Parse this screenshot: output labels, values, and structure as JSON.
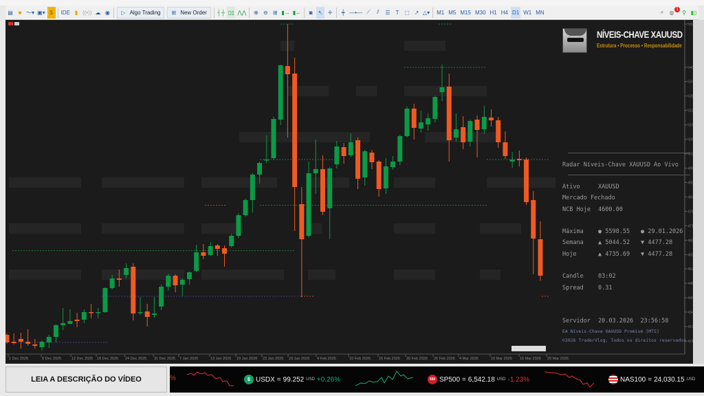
{
  "toolbar": {
    "algo_trading": "Algo Trading",
    "new_order": "New Order",
    "ide": "IDE",
    "timeframes": [
      "M1",
      "M5",
      "M15",
      "M30",
      "H1",
      "H4",
      "D1",
      "W1",
      "MN"
    ],
    "active_timeframe": "D1",
    "notification_count": "1"
  },
  "chart": {
    "symbol": "XAUUSD",
    "timeframe": "D1",
    "bull_color": "#0b9a47",
    "bear_color": "#f05a22",
    "price_axis": [
      "5597",
      "5408",
      "5346",
      "5283",
      "5220",
      "5157",
      "5094",
      "5031",
      "4968",
      "4906",
      "4843",
      "4780",
      "4717",
      "4654",
      "4591",
      "4529",
      "4466",
      "4403",
      "4340",
      "4277",
      "4214"
    ],
    "date_axis": [
      "1 Dec 2025",
      "8 Dec 2025",
      "12 Dec 2025",
      "18 Dec 2025",
      "24 Dec 2025",
      "31 Dec 2025",
      "7 Jan 2026",
      "13 Jan 2026",
      "19 Jan 2026",
      "23 Jan 2026",
      "29 Jan 2026",
      "4 Feb 2026",
      "10 Feb 2026",
      "16 Feb 2026",
      "20 Feb 2026",
      "26 Feb 2026",
      "4 Mar 2026",
      "10 Mar 2026",
      "16 Mar 2026",
      "20 Mar 2026"
    ],
    "ohlc": [
      [
        4241,
        4247,
        4202,
        4208
      ],
      [
        4211,
        4247,
        4199,
        4205
      ],
      [
        4223,
        4250,
        4181,
        4211
      ],
      [
        4211,
        4265,
        4193,
        4202
      ],
      [
        4199,
        4223,
        4181,
        4193
      ],
      [
        4187,
        4217,
        4172,
        4211
      ],
      [
        4208,
        4241,
        4184,
        4232
      ],
      [
        4232,
        4286,
        4208,
        4283
      ],
      [
        4283,
        4358,
        4262,
        4292
      ],
      [
        4289,
        4352,
        4286,
        4301
      ],
      [
        4307,
        4337,
        4274,
        4301
      ],
      [
        4307,
        4352,
        4292,
        4340
      ],
      [
        4340,
        4376,
        4313,
        4337
      ],
      [
        4337,
        4358,
        4313,
        4340
      ],
      [
        4340,
        4448,
        4337,
        4445
      ],
      [
        4445,
        4502,
        4439,
        4487
      ],
      [
        4487,
        4526,
        4451,
        4481
      ],
      [
        4502,
        4553,
        4487,
        4532
      ],
      [
        4538,
        4553,
        4304,
        4334
      ],
      [
        4337,
        4406,
        4328,
        4340
      ],
      [
        4343,
        4376,
        4277,
        4319
      ],
      [
        4328,
        4406,
        4316,
        4334
      ],
      [
        4364,
        4460,
        4349,
        4451
      ],
      [
        4451,
        4508,
        4433,
        4499
      ],
      [
        4499,
        4505,
        4427,
        4457
      ],
      [
        4460,
        4487,
        4409,
        4481
      ],
      [
        4484,
        4517,
        4460,
        4514
      ],
      [
        4520,
        4634,
        4514,
        4601
      ],
      [
        4601,
        4637,
        4571,
        4586
      ],
      [
        4589,
        4646,
        4586,
        4628
      ],
      [
        4631,
        4637,
        4586,
        4616
      ],
      [
        4619,
        4631,
        4538,
        4595
      ],
      [
        4628,
        4682,
        4622,
        4673
      ],
      [
        4673,
        4772,
        4664,
        4763
      ],
      [
        4763,
        4835,
        4757,
        4829
      ],
      [
        4829,
        4946,
        4775,
        4940
      ],
      [
        4940,
        4997,
        4901,
        4991
      ],
      [
        5003,
        5111,
        4991,
        5006
      ],
      [
        5012,
        5192,
        5006,
        5183
      ],
      [
        5180,
        5420,
        5156,
        5417
      ],
      [
        5414,
        5597,
        5102,
        5378
      ],
      [
        5381,
        5450,
        4694,
        4886
      ],
      [
        4811,
        4886,
        4406,
        4658
      ],
      [
        4673,
        4997,
        4667,
        4946
      ],
      [
        4946,
        5093,
        4856,
        4964
      ],
      [
        4964,
        5024,
        4763,
        4778
      ],
      [
        4793,
        4973,
        4658,
        4967
      ],
      [
        4985,
        5087,
        4967,
        5063
      ],
      [
        5060,
        5078,
        4988,
        5021
      ],
      [
        5024,
        5120,
        5018,
        5081
      ],
      [
        5090,
        5102,
        4877,
        4922
      ],
      [
        4928,
        5048,
        4892,
        5042
      ],
      [
        5036,
        5048,
        4964,
        4994
      ],
      [
        4997,
        5003,
        4844,
        4877
      ],
      [
        4880,
        5012,
        4856,
        4976
      ],
      [
        4973,
        5021,
        4961,
        4997
      ],
      [
        4997,
        5114,
        4982,
        5108
      ],
      [
        5108,
        5237,
        5102,
        5228
      ],
      [
        5228,
        5249,
        5093,
        5144
      ],
      [
        5141,
        5219,
        5123,
        5168
      ],
      [
        5159,
        5207,
        5132,
        5186
      ],
      [
        5183,
        5285,
        5168,
        5279
      ],
      [
        5300,
        5420,
        5261,
        5321
      ],
      [
        5324,
        5381,
        4997,
        5090
      ],
      [
        5102,
        5207,
        5084,
        5138
      ],
      [
        5147,
        5195,
        5051,
        5081
      ],
      [
        5084,
        5180,
        5063,
        5174
      ],
      [
        5180,
        5198,
        5015,
        5135
      ],
      [
        5138,
        5240,
        5117,
        5192
      ],
      [
        5189,
        5225,
        5150,
        5177
      ],
      [
        5177,
        5192,
        5057,
        5081
      ],
      [
        5081,
        5129,
        5009,
        5021
      ],
      [
        4997,
        5039,
        4970,
        5006
      ],
      [
        5009,
        5045,
        4976,
        5003
      ],
      [
        5006,
        5015,
        4808,
        4820
      ],
      [
        4829,
        4868,
        4505,
        4661
      ],
      [
        4658,
        4736,
        4477,
        4499
      ]
    ]
  },
  "logo": {
    "title": "NÍVEIS-CHAVE XAUUSD",
    "subtitle": "Estrutura • Processo • Responsabilidade"
  },
  "panel": {
    "title": "Radar Níveis-Chave XAUUSD Ao Vivo",
    "ativo_label": "Ativo",
    "ativo": "XAUUSD",
    "status": "Mercado Fechado",
    "ncb_label": "NCB Hoje",
    "ncb": "4600.00",
    "maxima_label": "Máxima",
    "maxima_price": "● 5598.55",
    "maxima_date": "● 29.01.2026",
    "semana_label": "Semana",
    "semana_high": "▲ 5044.52",
    "semana_low": "▼ 4477.28",
    "hoje_label": "Hoje",
    "hoje_high": "▲ 4735.69",
    "hoje_low": "▼ 4477.28",
    "candle_label": "Candle",
    "candle": "03:02",
    "spread_label": "Spread",
    "spread": "0.31",
    "servidor_label": "Servidor",
    "servidor_date": "20.03.2026",
    "servidor_time": "23:56:58",
    "ea_name": "EA Níveis-Chave XAUUSD Premium [MTS]",
    "copyright": "©2026 TraderVlog, Todos os direitos reservados"
  },
  "ticker": {
    "banner": "LEIA A DESCRIÇÃO DO VÍDEO",
    "partial": "%",
    "items": [
      {
        "symbol": "USDX",
        "icon": "$",
        "value": "99.252",
        "unit": "USD",
        "change": "+0.26%",
        "color": "#18b07a"
      },
      {
        "symbol": "SP500",
        "icon": "500",
        "value": "6,542.18",
        "unit": "USD",
        "change": "-1.23%",
        "color": "#e0303e"
      },
      {
        "symbol": "NAS100",
        "icon": "us-flag",
        "value": "24,030.15",
        "unit": "USD",
        "change": ""
      }
    ]
  }
}
